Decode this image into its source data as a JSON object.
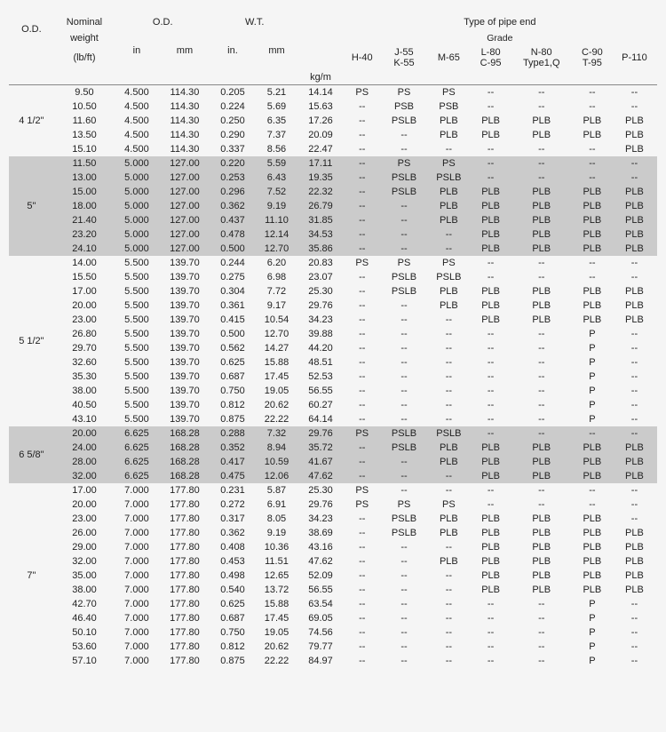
{
  "header": {
    "od_label": "O.D.",
    "nominal_label1": "Nominal",
    "nominal_label2": "weight",
    "nominal_label3": "(lb/ft)",
    "od_dim_label": "O.D.",
    "wt_label": "W.T.",
    "in_label": "in",
    "mm_label": "mm",
    "in_dot_label": "in.",
    "kg_m_label": "kg/m",
    "pipe_end_label": "Type of pipe end",
    "grade_label": "Grade",
    "h40": "H-40",
    "j55": "J-55",
    "k55": "K-55",
    "m65": "M-65",
    "l80": "L-80",
    "c95": "C-95",
    "n80": "N-80",
    "type1q": "Type1,Q",
    "c90": "C-90",
    "t95": "T-95",
    "p110": "P-110"
  },
  "groups": [
    {
      "od": "4 1/2\"",
      "class": "group-white",
      "rows": [
        {
          "nw": "9.50",
          "in": "4.500",
          "mm": "114.30",
          "win": "0.205",
          "wmm": "5.21",
          "kgm": "14.14",
          "h40": "PS",
          "j55": "PS",
          "m65": "PS",
          "l80": "--",
          "n80": "--",
          "c90": "--",
          "p110": "--"
        },
        {
          "nw": "10.50",
          "in": "4.500",
          "mm": "114.30",
          "win": "0.224",
          "wmm": "5.69",
          "kgm": "15.63",
          "h40": "--",
          "j55": "PSB",
          "m65": "PSB",
          "l80": "--",
          "n80": "--",
          "c90": "--",
          "p110": "--"
        },
        {
          "nw": "11.60",
          "in": "4.500",
          "mm": "114.30",
          "win": "0.250",
          "wmm": "6.35",
          "kgm": "17.26",
          "h40": "--",
          "j55": "PSLB",
          "m65": "PLB",
          "l80": "PLB",
          "n80": "PLB",
          "c90": "PLB",
          "p110": "PLB"
        },
        {
          "nw": "13.50",
          "in": "4.500",
          "mm": "114.30",
          "win": "0.290",
          "wmm": "7.37",
          "kgm": "20.09",
          "h40": "--",
          "j55": "--",
          "m65": "PLB",
          "l80": "PLB",
          "n80": "PLB",
          "c90": "PLB",
          "p110": "PLB"
        },
        {
          "nw": "15.10",
          "in": "4.500",
          "mm": "114.30",
          "win": "0.337",
          "wmm": "8.56",
          "kgm": "22.47",
          "h40": "--",
          "j55": "--",
          "m65": "--",
          "l80": "--",
          "n80": "--",
          "c90": "--",
          "p110": "PLB"
        }
      ]
    },
    {
      "od": "5\"",
      "class": "group-gray",
      "rows": [
        {
          "nw": "11.50",
          "in": "5.000",
          "mm": "127.00",
          "win": "0.220",
          "wmm": "5.59",
          "kgm": "17.11",
          "h40": "--",
          "j55": "PS",
          "m65": "PS",
          "l80": "--",
          "n80": "--",
          "c90": "--",
          "p110": "--"
        },
        {
          "nw": "13.00",
          "in": "5.000",
          "mm": "127.00",
          "win": "0.253",
          "wmm": "6.43",
          "kgm": "19.35",
          "h40": "--",
          "j55": "PSLB",
          "m65": "PSLB",
          "l80": "--",
          "n80": "--",
          "c90": "--",
          "p110": "--"
        },
        {
          "nw": "15.00",
          "in": "5.000",
          "mm": "127.00",
          "win": "0.296",
          "wmm": "7.52",
          "kgm": "22.32",
          "h40": "--",
          "j55": "PSLB",
          "m65": "PLB",
          "l80": "PLB",
          "n80": "PLB",
          "c90": "PLB",
          "p110": "PLB"
        },
        {
          "nw": "18.00",
          "in": "5.000",
          "mm": "127.00",
          "win": "0.362",
          "wmm": "9.19",
          "kgm": "26.79",
          "h40": "--",
          "j55": "--",
          "m65": "PLB",
          "l80": "PLB",
          "n80": "PLB",
          "c90": "PLB",
          "p110": "PLB"
        },
        {
          "nw": "21.40",
          "in": "5.000",
          "mm": "127.00",
          "win": "0.437",
          "wmm": "11.10",
          "kgm": "31.85",
          "h40": "--",
          "j55": "--",
          "m65": "PLB",
          "l80": "PLB",
          "n80": "PLB",
          "c90": "PLB",
          "p110": "PLB"
        },
        {
          "nw": "23.20",
          "in": "5.000",
          "mm": "127.00",
          "win": "0.478",
          "wmm": "12.14",
          "kgm": "34.53",
          "h40": "--",
          "j55": "--",
          "m65": "--",
          "l80": "PLB",
          "n80": "PLB",
          "c90": "PLB",
          "p110": "PLB"
        },
        {
          "nw": "24.10",
          "in": "5.000",
          "mm": "127.00",
          "win": "0.500",
          "wmm": "12.70",
          "kgm": "35.86",
          "h40": "--",
          "j55": "--",
          "m65": "--",
          "l80": "PLB",
          "n80": "PLB",
          "c90": "PLB",
          "p110": "PLB"
        }
      ]
    },
    {
      "od": "5 1/2\"",
      "class": "group-white",
      "rows": [
        {
          "nw": "14.00",
          "in": "5.500",
          "mm": "139.70",
          "win": "0.244",
          "wmm": "6.20",
          "kgm": "20.83",
          "h40": "PS",
          "j55": "PS",
          "m65": "PS",
          "l80": "--",
          "n80": "--",
          "c90": "--",
          "p110": "--"
        },
        {
          "nw": "15.50",
          "in": "5.500",
          "mm": "139.70",
          "win": "0.275",
          "wmm": "6.98",
          "kgm": "23.07",
          "h40": "--",
          "j55": "PSLB",
          "m65": "PSLB",
          "l80": "--",
          "n80": "--",
          "c90": "--",
          "p110": "--"
        },
        {
          "nw": "17.00",
          "in": "5.500",
          "mm": "139.70",
          "win": "0.304",
          "wmm": "7.72",
          "kgm": "25.30",
          "h40": "--",
          "j55": "PSLB",
          "m65": "PLB",
          "l80": "PLB",
          "n80": "PLB",
          "c90": "PLB",
          "p110": "PLB"
        },
        {
          "nw": "20.00",
          "in": "5.500",
          "mm": "139.70",
          "win": "0.361",
          "wmm": "9.17",
          "kgm": "29.76",
          "h40": "--",
          "j55": "--",
          "m65": "PLB",
          "l80": "PLB",
          "n80": "PLB",
          "c90": "PLB",
          "p110": "PLB"
        },
        {
          "nw": "23.00",
          "in": "5.500",
          "mm": "139.70",
          "win": "0.415",
          "wmm": "10.54",
          "kgm": "34.23",
          "h40": "--",
          "j55": "--",
          "m65": "--",
          "l80": "PLB",
          "n80": "PLB",
          "c90": "PLB",
          "p110": "PLB"
        },
        {
          "nw": "26.80",
          "in": "5.500",
          "mm": "139.70",
          "win": "0.500",
          "wmm": "12.70",
          "kgm": "39.88",
          "h40": "--",
          "j55": "--",
          "m65": "--",
          "l80": "--",
          "n80": "--",
          "c90": "P",
          "p110": "--"
        },
        {
          "nw": "29.70",
          "in": "5.500",
          "mm": "139.70",
          "win": "0.562",
          "wmm": "14.27",
          "kgm": "44.20",
          "h40": "--",
          "j55": "--",
          "m65": "--",
          "l80": "--",
          "n80": "--",
          "c90": "P",
          "p110": "--"
        },
        {
          "nw": "32.60",
          "in": "5.500",
          "mm": "139.70",
          "win": "0.625",
          "wmm": "15.88",
          "kgm": "48.51",
          "h40": "--",
          "j55": "--",
          "m65": "--",
          "l80": "--",
          "n80": "--",
          "c90": "P",
          "p110": "--"
        },
        {
          "nw": "35.30",
          "in": "5.500",
          "mm": "139.70",
          "win": "0.687",
          "wmm": "17.45",
          "kgm": "52.53",
          "h40": "--",
          "j55": "--",
          "m65": "--",
          "l80": "--",
          "n80": "--",
          "c90": "P",
          "p110": "--"
        },
        {
          "nw": "38.00",
          "in": "5.500",
          "mm": "139.70",
          "win": "0.750",
          "wmm": "19.05",
          "kgm": "56.55",
          "h40": "--",
          "j55": "--",
          "m65": "--",
          "l80": "--",
          "n80": "--",
          "c90": "P",
          "p110": "--"
        },
        {
          "nw": "40.50",
          "in": "5.500",
          "mm": "139.70",
          "win": "0.812",
          "wmm": "20.62",
          "kgm": "60.27",
          "h40": "--",
          "j55": "--",
          "m65": "--",
          "l80": "--",
          "n80": "--",
          "c90": "P",
          "p110": "--"
        },
        {
          "nw": "43.10",
          "in": "5.500",
          "mm": "139.70",
          "win": "0.875",
          "wmm": "22.22",
          "kgm": "64.14",
          "h40": "--",
          "j55": "--",
          "m65": "--",
          "l80": "--",
          "n80": "--",
          "c90": "P",
          "p110": "--"
        }
      ]
    },
    {
      "od": "6 5/8\"",
      "class": "group-gray",
      "rows": [
        {
          "nw": "20.00",
          "in": "6.625",
          "mm": "168.28",
          "win": "0.288",
          "wmm": "7.32",
          "kgm": "29.76",
          "h40": "PS",
          "j55": "PSLB",
          "m65": "PSLB",
          "l80": "--",
          "n80": "--",
          "c90": "--",
          "p110": "--"
        },
        {
          "nw": "24.00",
          "in": "6.625",
          "mm": "168.28",
          "win": "0.352",
          "wmm": "8.94",
          "kgm": "35.72",
          "h40": "--",
          "j55": "PSLB",
          "m65": "PLB",
          "l80": "PLB",
          "n80": "PLB",
          "c90": "PLB",
          "p110": "PLB"
        },
        {
          "nw": "28.00",
          "in": "6.625",
          "mm": "168.28",
          "win": "0.417",
          "wmm": "10.59",
          "kgm": "41.67",
          "h40": "--",
          "j55": "--",
          "m65": "PLB",
          "l80": "PLB",
          "n80": "PLB",
          "c90": "PLB",
          "p110": "PLB"
        },
        {
          "nw": "32.00",
          "in": "6.625",
          "mm": "168.28",
          "win": "0.475",
          "wmm": "12.06",
          "kgm": "47.62",
          "h40": "--",
          "j55": "--",
          "m65": "--",
          "l80": "PLB",
          "n80": "PLB",
          "c90": "PLB",
          "p110": "PLB"
        }
      ]
    },
    {
      "od": "7\"",
      "class": "group-white",
      "rows": [
        {
          "nw": "17.00",
          "in": "7.000",
          "mm": "177.80",
          "win": "0.231",
          "wmm": "5.87",
          "kgm": "25.30",
          "h40": "PS",
          "j55": "--",
          "m65": "--",
          "l80": "--",
          "n80": "--",
          "c90": "--",
          "p110": "--"
        },
        {
          "nw": "20.00",
          "in": "7.000",
          "mm": "177.80",
          "win": "0.272",
          "wmm": "6.91",
          "kgm": "29.76",
          "h40": "PS",
          "j55": "PS",
          "m65": "PS",
          "l80": "--",
          "n80": "--",
          "c90": "--",
          "p110": "--"
        },
        {
          "nw": "23.00",
          "in": "7.000",
          "mm": "177.80",
          "win": "0.317",
          "wmm": "8.05",
          "kgm": "34.23",
          "h40": "--",
          "j55": "PSLB",
          "m65": "PLB",
          "l80": "PLB",
          "n80": "PLB",
          "c90": "PLB",
          "p110": "--"
        },
        {
          "nw": "26.00",
          "in": "7.000",
          "mm": "177.80",
          "win": "0.362",
          "wmm": "9.19",
          "kgm": "38.69",
          "h40": "--",
          "j55": "PSLB",
          "m65": "PLB",
          "l80": "PLB",
          "n80": "PLB",
          "c90": "PLB",
          "p110": "PLB"
        },
        {
          "nw": "29.00",
          "in": "7.000",
          "mm": "177.80",
          "win": "0.408",
          "wmm": "10.36",
          "kgm": "43.16",
          "h40": "--",
          "j55": "--",
          "m65": "--",
          "l80": "PLB",
          "n80": "PLB",
          "c90": "PLB",
          "p110": "PLB"
        },
        {
          "nw": "32.00",
          "in": "7.000",
          "mm": "177.80",
          "win": "0.453",
          "wmm": "11.51",
          "kgm": "47.62",
          "h40": "--",
          "j55": "--",
          "m65": "PLB",
          "l80": "PLB",
          "n80": "PLB",
          "c90": "PLB",
          "p110": "PLB"
        },
        {
          "nw": "35.00",
          "in": "7.000",
          "mm": "177.80",
          "win": "0.498",
          "wmm": "12.65",
          "kgm": "52.09",
          "h40": "--",
          "j55": "--",
          "m65": "--",
          "l80": "PLB",
          "n80": "PLB",
          "c90": "PLB",
          "p110": "PLB"
        },
        {
          "nw": "38.00",
          "in": "7.000",
          "mm": "177.80",
          "win": "0.540",
          "wmm": "13.72",
          "kgm": "56.55",
          "h40": "--",
          "j55": "--",
          "m65": "--",
          "l80": "PLB",
          "n80": "PLB",
          "c90": "PLB",
          "p110": "PLB"
        },
        {
          "nw": "42.70",
          "in": "7.000",
          "mm": "177.80",
          "win": "0.625",
          "wmm": "15.88",
          "kgm": "63.54",
          "h40": "--",
          "j55": "--",
          "m65": "--",
          "l80": "--",
          "n80": "--",
          "c90": "P",
          "p110": "--"
        },
        {
          "nw": "46.40",
          "in": "7.000",
          "mm": "177.80",
          "win": "0.687",
          "wmm": "17.45",
          "kgm": "69.05",
          "h40": "--",
          "j55": "--",
          "m65": "--",
          "l80": "--",
          "n80": "--",
          "c90": "P",
          "p110": "--"
        },
        {
          "nw": "50.10",
          "in": "7.000",
          "mm": "177.80",
          "win": "0.750",
          "wmm": "19.05",
          "kgm": "74.56",
          "h40": "--",
          "j55": "--",
          "m65": "--",
          "l80": "--",
          "n80": "--",
          "c90": "P",
          "p110": "--"
        },
        {
          "nw": "53.60",
          "in": "7.000",
          "mm": "177.80",
          "win": "0.812",
          "wmm": "20.62",
          "kgm": "79.77",
          "h40": "--",
          "j55": "--",
          "m65": "--",
          "l80": "--",
          "n80": "--",
          "c90": "P",
          "p110": "--"
        },
        {
          "nw": "57.10",
          "in": "7.000",
          "mm": "177.80",
          "win": "0.875",
          "wmm": "22.22",
          "kgm": "84.97",
          "h40": "--",
          "j55": "--",
          "m65": "--",
          "l80": "--",
          "n80": "--",
          "c90": "P",
          "p110": "--"
        }
      ]
    }
  ]
}
